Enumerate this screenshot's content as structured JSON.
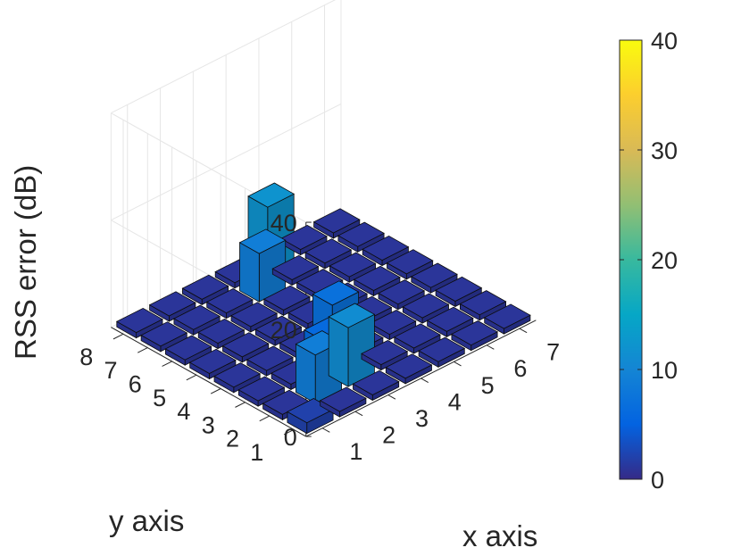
{
  "chart_data": {
    "type": "bar3",
    "xlabel": "x axis",
    "ylabel": "y axis",
    "zlabel": "RSS error (dB)",
    "x_ticks": [
      "1",
      "2",
      "3",
      "4",
      "5",
      "6",
      "7"
    ],
    "y_ticks": [
      "1",
      "2",
      "3",
      "4",
      "5",
      "6",
      "7",
      "8"
    ],
    "z_ticks": [
      "0",
      "20",
      "40"
    ],
    "zlim": [
      0,
      40
    ],
    "colorbar": {
      "ticks": [
        "0",
        "10",
        "20",
        "30",
        "40"
      ],
      "range": [
        0,
        40
      ],
      "colormap": "parula"
    },
    "values": [
      [
        2.0,
        1.0,
        1.0,
        1.0,
        1.0,
        1.0,
        1.0,
        1.0
      ],
      [
        1.0,
        9.0,
        1.0,
        1.0,
        1.0,
        1.0,
        1.0,
        1.0
      ],
      [
        1.0,
        11.0,
        6.0,
        1.0,
        1.0,
        1.0,
        1.0,
        1.0
      ],
      [
        1.0,
        1.0,
        1.0,
        7.0,
        1.0,
        1.0,
        9.0,
        1.0
      ],
      [
        1.0,
        1.0,
        1.0,
        1.0,
        1.0,
        1.0,
        1.0,
        12.0
      ],
      [
        1.0,
        1.0,
        1.0,
        1.0,
        1.0,
        1.0,
        1.0,
        1.0
      ],
      [
        1.0,
        1.0,
        1.0,
        1.0,
        1.0,
        1.0,
        1.0,
        1.0
      ]
    ],
    "grid": true,
    "colors": {
      "low": "#3e26a8",
      "bar_edge": "#0d0d0d",
      "axis": "#262626",
      "grid": "#e6e6e6"
    }
  }
}
